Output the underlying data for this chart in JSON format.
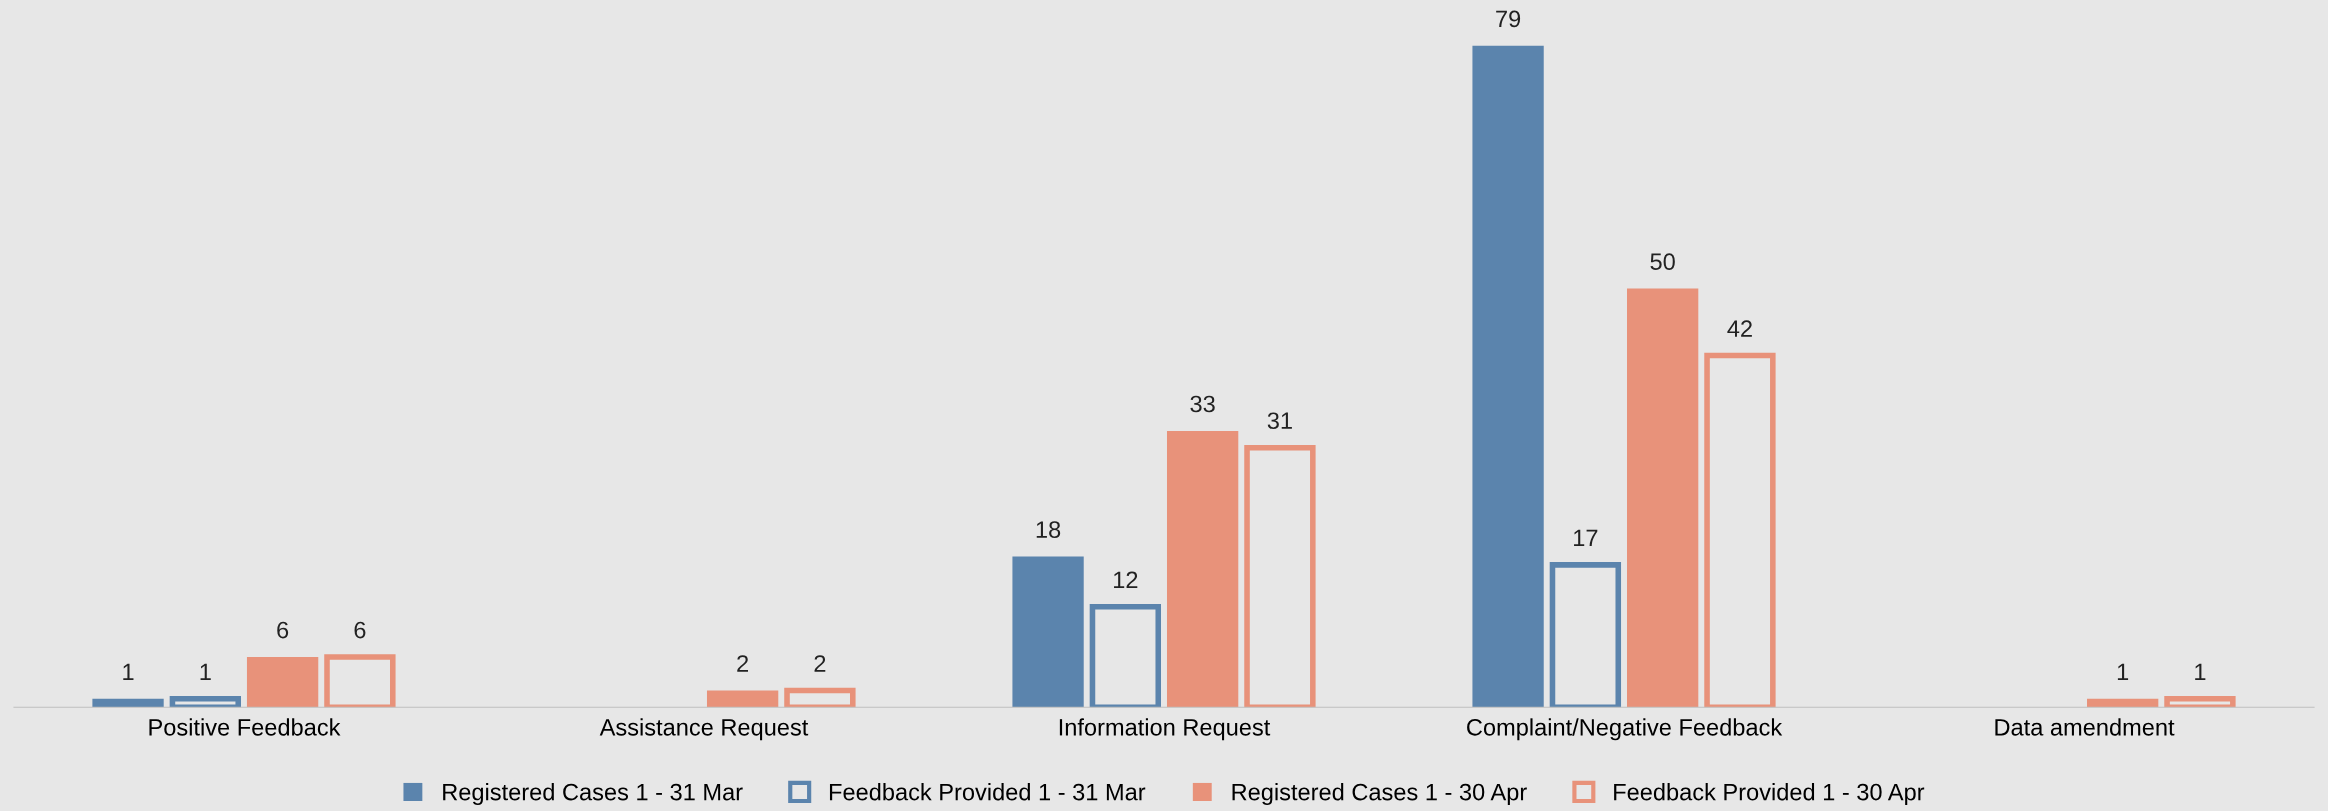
{
  "chart_data": {
    "type": "bar",
    "categories": [
      "Positive Feedback",
      "Assistance Request",
      "Information Request",
      "Complaint/Negative Feedback",
      "Data amendment"
    ],
    "series": [
      {
        "name": "Registered Cases 1 - 31 Mar",
        "color": "#5b84ad",
        "values": [
          1,
          null,
          18,
          79,
          null
        ]
      },
      {
        "name": "Feedback Provided 1 - 31 Mar",
        "color": "#5b84ad",
        "values": [
          1,
          null,
          12,
          17,
          null
        ]
      },
      {
        "name": "Registered Cases 1 - 30 Apr",
        "color": "#e8927a",
        "values": [
          6,
          2,
          33,
          50,
          1
        ]
      },
      {
        "name": "Feedback Provided 1 - 30 Apr",
        "color": "#e8927a",
        "values": [
          6,
          2,
          31,
          42,
          1
        ]
      }
    ],
    "data_labels": true,
    "legend": "bottom",
    "grid": false,
    "tick_labels": "x"
  }
}
